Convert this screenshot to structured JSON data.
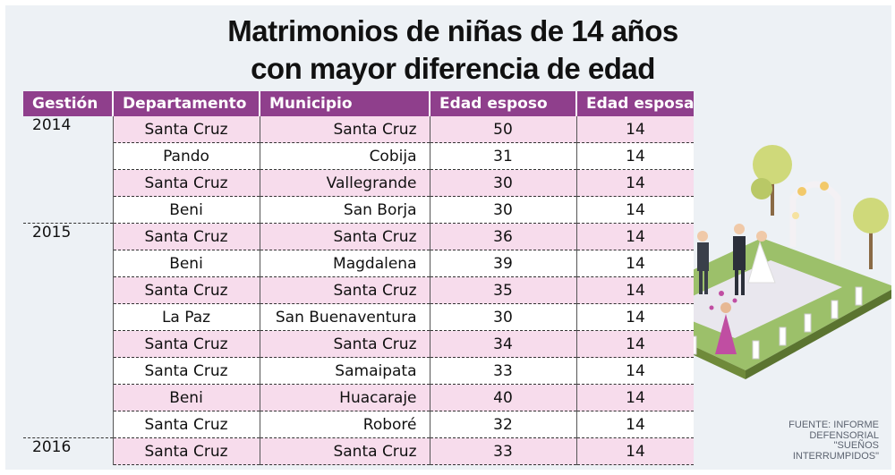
{
  "title": {
    "line1": "Matrimonios de niñas de 14 años",
    "line2": "con mayor diferencia de edad"
  },
  "table": {
    "headers": {
      "year": "Gestión",
      "department": "Departamento",
      "municipality": "Municipio",
      "husband_age": "Edad esposo",
      "wife_age": "Edad esposa"
    },
    "rows": [
      {
        "year": "2014",
        "department": "Santa Cruz",
        "municipality": "Santa Cruz",
        "husband_age": "50",
        "wife_age": "14"
      },
      {
        "year": "",
        "department": "Pando",
        "municipality": "Cobija",
        "husband_age": "31",
        "wife_age": "14"
      },
      {
        "year": "",
        "department": "Santa Cruz",
        "municipality": "Vallegrande",
        "husband_age": "30",
        "wife_age": "14"
      },
      {
        "year": "",
        "department": "Beni",
        "municipality": "San Borja",
        "husband_age": "30",
        "wife_age": "14"
      },
      {
        "year": "2015",
        "department": "Santa Cruz",
        "municipality": "Santa Cruz",
        "husband_age": "36",
        "wife_age": "14"
      },
      {
        "year": "",
        "department": "Beni",
        "municipality": "Magdalena",
        "husband_age": "39",
        "wife_age": "14"
      },
      {
        "year": "",
        "department": "Santa Cruz",
        "municipality": "Santa Cruz",
        "husband_age": "35",
        "wife_age": "14"
      },
      {
        "year": "",
        "department": "La Paz",
        "municipality": "San Buenaventura",
        "husband_age": "30",
        "wife_age": "14"
      },
      {
        "year": "",
        "department": "Santa Cruz",
        "municipality": "Santa Cruz",
        "husband_age": "34",
        "wife_age": "14"
      },
      {
        "year": "",
        "department": "Santa Cruz",
        "municipality": "Samaipata",
        "husband_age": "33",
        "wife_age": "14"
      },
      {
        "year": "",
        "department": "Beni",
        "municipality": "Huacaraje",
        "husband_age": "40",
        "wife_age": "14"
      },
      {
        "year": "",
        "department": "Santa Cruz",
        "municipality": "Roboré",
        "husband_age": "32",
        "wife_age": "14"
      },
      {
        "year": "2016",
        "department": "Santa Cruz",
        "municipality": "Santa Cruz",
        "husband_age": "33",
        "wife_age": "14"
      }
    ]
  },
  "source": {
    "line1": "FUENTE: INFORME",
    "line2": "DEFENSORIAL",
    "line3": "\"SUEÑOS",
    "line4": "INTERRUMPIDOS\""
  },
  "colors": {
    "header_bg": "#8f3f8c",
    "row_pink": "#f7dcec",
    "background": "#edf1f5"
  }
}
